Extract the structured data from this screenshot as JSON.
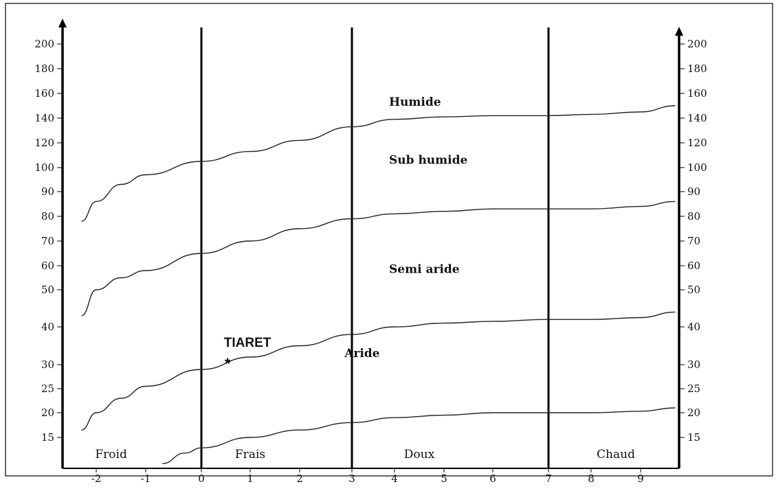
{
  "chart_data": {
    "type": "line",
    "title": "",
    "xlabel": "",
    "ylabel": "",
    "x_ticks": [
      -2,
      -1,
      0,
      1,
      2,
      3,
      4,
      5,
      6,
      7,
      8,
      9
    ],
    "xlim": [
      -2.7,
      9.8
    ],
    "y_ticks": [
      15,
      20,
      25,
      30,
      40,
      50,
      60,
      70,
      80,
      90,
      100,
      120,
      140,
      160,
      180,
      200
    ],
    "ylim": [
      10,
      210
    ],
    "zones": [
      {
        "label": "Froid",
        "x": -1.7
      },
      {
        "label": "Frais",
        "x": 1.0
      },
      {
        "label": "Doux",
        "x": 4.5
      },
      {
        "label": "Chaud",
        "x": 8.5
      }
    ],
    "zone_boundaries": [
      0,
      3,
      7
    ],
    "series": [
      {
        "x": [
          -2.3,
          -2.0,
          -1.5,
          -1.0,
          0.0,
          1.0,
          2.0,
          3.0,
          4.0,
          5.0,
          6.0,
          7.0,
          8.0,
          9.0,
          9.7
        ],
        "values": [
          78,
          86,
          93,
          97,
          105,
          113,
          122,
          133,
          139,
          141,
          142,
          142,
          143,
          145,
          150
        ]
      },
      {
        "x": [
          -2.3,
          -2.0,
          -1.5,
          -1.0,
          0.0,
          1.0,
          2.0,
          3.0,
          4.0,
          5.0,
          6.0,
          7.0,
          8.0,
          9.0,
          9.7
        ],
        "values": [
          43,
          50,
          55,
          58,
          65,
          70,
          75,
          79,
          81,
          82,
          83,
          83,
          83,
          84,
          86
        ]
      },
      {
        "x": [
          -2.3,
          -2.0,
          -1.5,
          -1.0,
          0.0,
          1.0,
          2.0,
          3.0,
          4.0,
          5.0,
          6.0,
          7.0,
          8.0,
          9.0,
          9.7
        ],
        "values": [
          16.5,
          20,
          23,
          25.5,
          29,
          32,
          35,
          38,
          40,
          41,
          41.5,
          42,
          42,
          42.5,
          44
        ]
      },
      {
        "x": [
          -0.7,
          -0.3,
          0.0,
          1.0,
          2.0,
          3.0,
          4.0,
          5.0,
          6.0,
          7.0,
          8.0,
          9.0,
          9.7
        ],
        "values": [
          10,
          12,
          13,
          15,
          16.5,
          18,
          19,
          19.5,
          20,
          20,
          20,
          20.3,
          21
        ]
      }
    ],
    "regions": [
      {
        "label": "Humide",
        "x": 5.0,
        "y": 150
      },
      {
        "label": "Sub humide",
        "x": 5.0,
        "y": 103
      },
      {
        "label": "Semi aride",
        "x": 5.0,
        "y": 57
      },
      {
        "label": "Aride",
        "x": 4.1,
        "y": 32
      }
    ],
    "point": {
      "label": "TIARET",
      "marker": "*",
      "x": 0.8,
      "y": 31.5
    },
    "grid": false,
    "legend": "none"
  }
}
